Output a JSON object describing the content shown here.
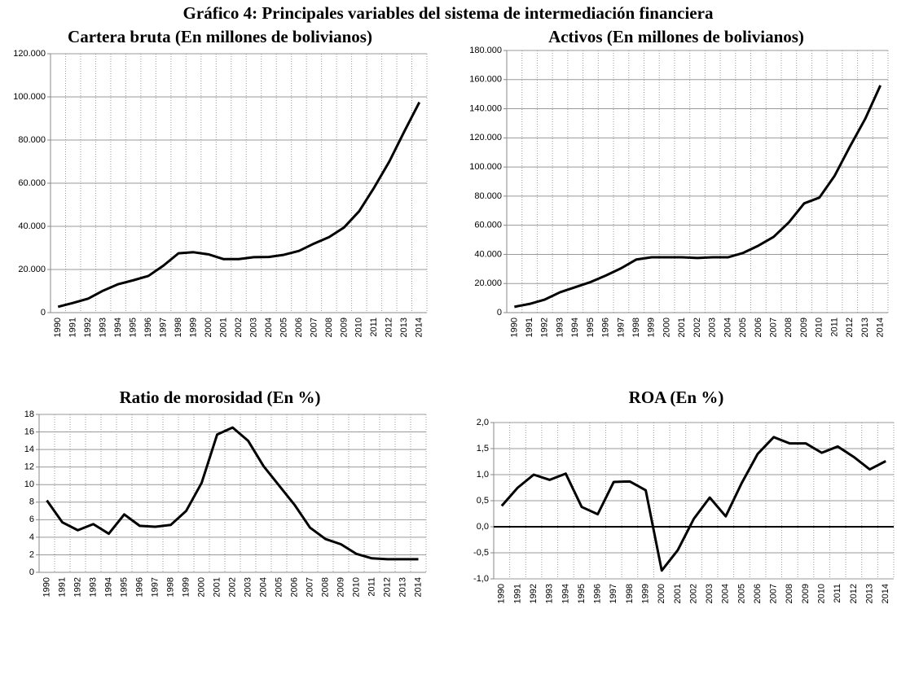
{
  "title": "Gráfico 4: Principales variables del sistema de intermediación financiera",
  "chart_data": [
    {
      "type": "line",
      "title": "Cartera bruta (En millones de bolivianos)",
      "categories": [
        "1990",
        "1991",
        "1992",
        "1993",
        "1994",
        "1995",
        "1996",
        "1997",
        "1998",
        "1999",
        "2000",
        "2001",
        "2002",
        "2003",
        "2004",
        "2005",
        "2006",
        "2007",
        "2008",
        "2009",
        "2010",
        "2011",
        "2012",
        "2013",
        "2014"
      ],
      "values": [
        2700,
        4500,
        6500,
        10200,
        13200,
        15000,
        17000,
        21800,
        27500,
        28000,
        27000,
        24800,
        24800,
        25700,
        25800,
        26800,
        28600,
        32000,
        35000,
        39500,
        47000,
        58000,
        70000,
        84000,
        97500
      ],
      "color": "#000000",
      "ylim": [
        0,
        120000
      ],
      "yticks": [
        0,
        {
          "value": 20000,
          "label": "20.000"
        },
        {
          "value": 40000,
          "label": "40.000"
        },
        {
          "value": 60000,
          "label": "60.000"
        },
        {
          "value": 80000,
          "label": "80.000"
        },
        {
          "value": 100000,
          "label": "100.000"
        },
        {
          "value": 120000,
          "label": "120.000"
        }
      ],
      "grid": true
    },
    {
      "type": "line",
      "title": "Activos (En millones de bolivianos)",
      "categories": [
        "1990",
        "1991",
        "1992",
        "1993",
        "1994",
        "1995",
        "1996",
        "1997",
        "1998",
        "1999",
        "2000",
        "2001",
        "2002",
        "2003",
        "2004",
        "2005",
        "2006",
        "2007",
        "2008",
        "2009",
        "2010",
        "2011",
        "2012",
        "2013",
        "2014"
      ],
      "values": [
        4000,
        6000,
        9000,
        14000,
        17500,
        21000,
        25500,
        30500,
        36500,
        38000,
        38000,
        38000,
        37500,
        38000,
        38000,
        41000,
        46000,
        52000,
        62000,
        75000,
        79000,
        94000,
        114000,
        133000,
        156000
      ],
      "color": "#000000",
      "ylim": [
        0,
        180000
      ],
      "yticks": [
        0,
        {
          "value": 20000,
          "label": "20.000"
        },
        {
          "value": 40000,
          "label": "40.000"
        },
        {
          "value": 60000,
          "label": "60.000"
        },
        {
          "value": 80000,
          "label": "80.000"
        },
        {
          "value": 100000,
          "label": "100.000"
        },
        {
          "value": 120000,
          "label": "120.000"
        },
        {
          "value": 140000,
          "label": "140.000"
        },
        {
          "value": 160000,
          "label": "160.000"
        },
        {
          "value": 180000,
          "label": "180.000"
        }
      ],
      "grid": true
    },
    {
      "type": "line",
      "title": "Ratio de morosidad (En %)",
      "categories": [
        "1990",
        "1991",
        "1992",
        "1993",
        "1994",
        "1995",
        "1996",
        "1997",
        "1998",
        "1999",
        "2000",
        "2001",
        "2002",
        "2003",
        "2004",
        "2005",
        "2006",
        "2007",
        "2008",
        "2009",
        "2010",
        "2011",
        "2012",
        "2013",
        "2014"
      ],
      "values": [
        8.2,
        5.7,
        4.8,
        5.5,
        4.4,
        6.6,
        5.3,
        5.2,
        5.4,
        7.0,
        10.2,
        15.7,
        16.5,
        15.0,
        12.1,
        9.9,
        7.7,
        5.1,
        3.8,
        3.2,
        2.1,
        1.6,
        1.5,
        1.5,
        1.5
      ],
      "color": "#000000",
      "ylim": [
        0,
        18
      ],
      "yticks": [
        0,
        2,
        4,
        6,
        8,
        10,
        12,
        14,
        16,
        18
      ],
      "grid": true
    },
    {
      "type": "line",
      "title": "ROA (En %)",
      "categories": [
        "1990",
        "1991",
        "1992",
        "1993",
        "1994",
        "1995",
        "1996",
        "1997",
        "1998",
        "1999",
        "2000",
        "2001",
        "2002",
        "2003",
        "2004",
        "2005",
        "2006",
        "2007",
        "2008",
        "2009",
        "2010",
        "2011",
        "2012",
        "2013",
        "2014"
      ],
      "values": [
        0.4,
        0.75,
        1.0,
        0.9,
        1.02,
        0.38,
        0.24,
        0.86,
        0.87,
        0.7,
        -0.84,
        -0.45,
        0.15,
        0.56,
        0.2,
        0.84,
        1.4,
        1.72,
        1.6,
        1.6,
        1.42,
        1.54,
        1.34,
        1.1,
        1.26
      ],
      "color": "#000000",
      "ylim": [
        -1,
        2
      ],
      "yticks": [
        {
          "value": -1,
          "label": "-1,0"
        },
        {
          "value": -0.5,
          "label": "-0,5"
        },
        {
          "value": 0,
          "label": "0,0"
        },
        {
          "value": 0.5,
          "label": "0,5"
        },
        {
          "value": 1,
          "label": "1,0"
        },
        {
          "value": 1.5,
          "label": "1,5"
        },
        {
          "value": 2,
          "label": "2,0"
        }
      ],
      "grid": true
    }
  ]
}
